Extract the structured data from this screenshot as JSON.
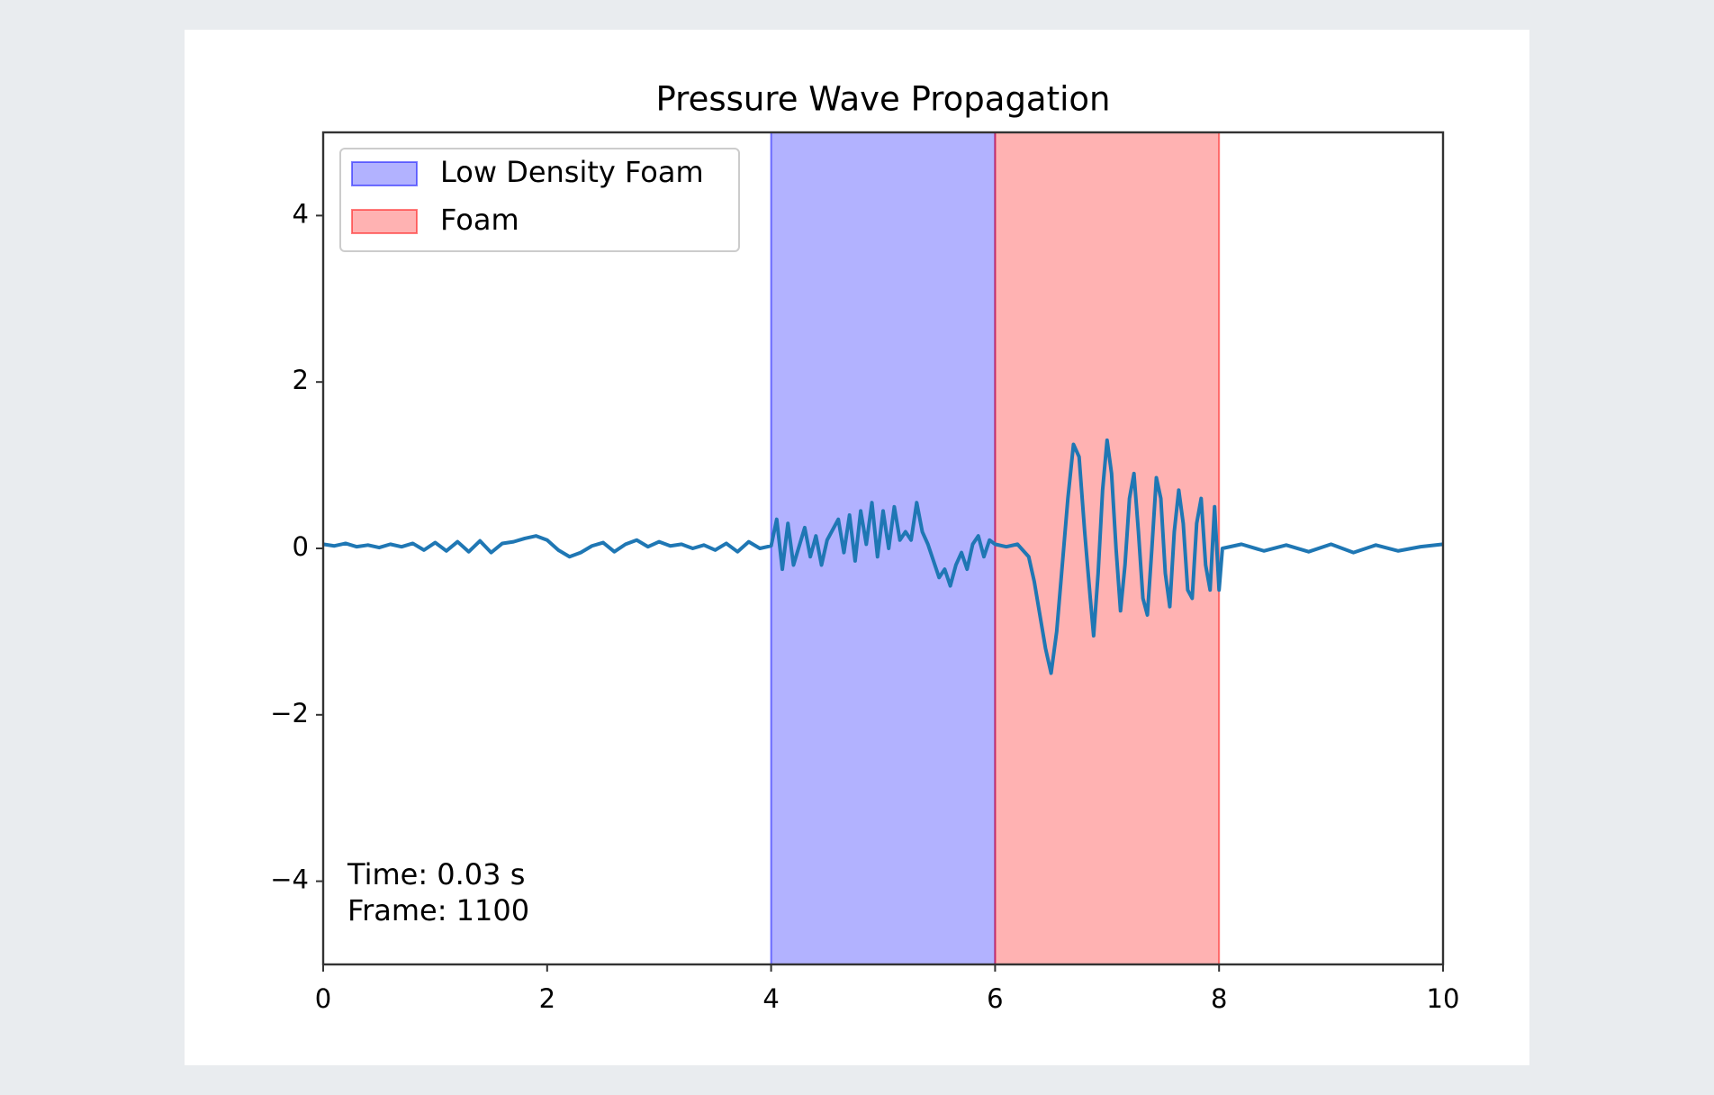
{
  "chart_data": {
    "type": "line",
    "title": "Pressure Wave Propagation",
    "x": [
      0,
      0.1,
      0.2,
      0.3,
      0.4,
      0.5,
      0.6,
      0.7,
      0.8,
      0.9,
      1.0,
      1.1,
      1.2,
      1.3,
      1.4,
      1.5,
      1.6,
      1.7,
      1.8,
      1.9,
      2.0,
      2.1,
      2.2,
      2.3,
      2.4,
      2.5,
      2.6,
      2.7,
      2.8,
      2.9,
      3.0,
      3.1,
      3.2,
      3.3,
      3.4,
      3.5,
      3.6,
      3.7,
      3.8,
      3.9,
      4.0,
      4.05,
      4.1,
      4.15,
      4.2,
      4.3,
      4.35,
      4.4,
      4.45,
      4.5,
      4.6,
      4.65,
      4.7,
      4.75,
      4.8,
      4.85,
      4.9,
      4.95,
      5.0,
      5.05,
      5.1,
      5.15,
      5.2,
      5.25,
      5.3,
      5.35,
      5.4,
      5.45,
      5.5,
      5.55,
      5.6,
      5.65,
      5.7,
      5.75,
      5.8,
      5.85,
      5.9,
      5.95,
      6.0,
      6.1,
      6.2,
      6.3,
      6.35,
      6.4,
      6.45,
      6.5,
      6.55,
      6.6,
      6.65,
      6.7,
      6.75,
      6.8,
      6.85,
      6.88,
      6.92,
      6.96,
      7.0,
      7.04,
      7.08,
      7.12,
      7.16,
      7.2,
      7.24,
      7.28,
      7.32,
      7.36,
      7.4,
      7.44,
      7.48,
      7.52,
      7.56,
      7.6,
      7.64,
      7.68,
      7.72,
      7.76,
      7.8,
      7.84,
      7.88,
      7.92,
      7.96,
      8.0,
      8.03,
      8.2,
      8.4,
      8.6,
      8.8,
      9.0,
      9.2,
      9.4,
      9.6,
      9.8,
      10.0
    ],
    "series": [
      {
        "color": "#1f77b4",
        "values": [
          0.05,
          0.03,
          0.06,
          0.02,
          0.04,
          0.01,
          0.05,
          0.02,
          0.06,
          -0.02,
          0.07,
          -0.03,
          0.08,
          -0.04,
          0.09,
          -0.05,
          0.06,
          0.08,
          0.12,
          0.15,
          0.1,
          -0.02,
          -0.1,
          -0.05,
          0.03,
          0.07,
          -0.04,
          0.05,
          0.1,
          0.02,
          0.08,
          0.03,
          0.05,
          0.0,
          0.04,
          -0.02,
          0.06,
          -0.04,
          0.08,
          0.0,
          0.03,
          0.35,
          -0.25,
          0.3,
          -0.2,
          0.25,
          -0.1,
          0.15,
          -0.2,
          0.1,
          0.35,
          -0.05,
          0.4,
          -0.15,
          0.45,
          0.05,
          0.55,
          -0.1,
          0.45,
          0.0,
          0.5,
          0.1,
          0.2,
          0.1,
          0.55,
          0.2,
          0.05,
          -0.15,
          -0.35,
          -0.25,
          -0.45,
          -0.2,
          -0.05,
          -0.25,
          0.05,
          0.15,
          -0.1,
          0.1,
          0.05,
          0.02,
          0.05,
          -0.1,
          -0.4,
          -0.8,
          -1.2,
          -1.5,
          -1.0,
          -0.2,
          0.6,
          1.25,
          1.1,
          0.2,
          -0.6,
          -1.05,
          -0.3,
          0.7,
          1.3,
          0.9,
          0.0,
          -0.75,
          -0.2,
          0.6,
          0.9,
          0.2,
          -0.6,
          -0.8,
          0.0,
          0.85,
          0.6,
          -0.3,
          -0.7,
          0.2,
          0.7,
          0.3,
          -0.5,
          -0.6,
          0.3,
          0.6,
          -0.2,
          -0.5,
          0.5,
          -0.5,
          0.0,
          0.05,
          -0.03,
          0.04,
          -0.04,
          0.05,
          -0.05,
          0.04,
          -0.03,
          0.02,
          0.05
        ]
      }
    ],
    "spans": [
      {
        "label": "Low Density Foam",
        "start": 4,
        "end": 6,
        "color": "#0000ff",
        "alpha": 0.3
      },
      {
        "label": "Foam",
        "start": 6,
        "end": 8,
        "color": "#ff0000",
        "alpha": 0.3
      }
    ],
    "annotations": [
      "Time: 0.03 s",
      "Frame: 1100"
    ],
    "xlim": [
      0,
      10
    ],
    "xticks": [
      0,
      2,
      4,
      6,
      8,
      10
    ],
    "ylim": [
      -5,
      5
    ],
    "yticks": [
      {
        "value": -4,
        "label": "−4"
      },
      {
        "value": -2,
        "label": "−2"
      },
      0,
      2,
      4
    ],
    "legend": "upper left",
    "grid": false
  }
}
